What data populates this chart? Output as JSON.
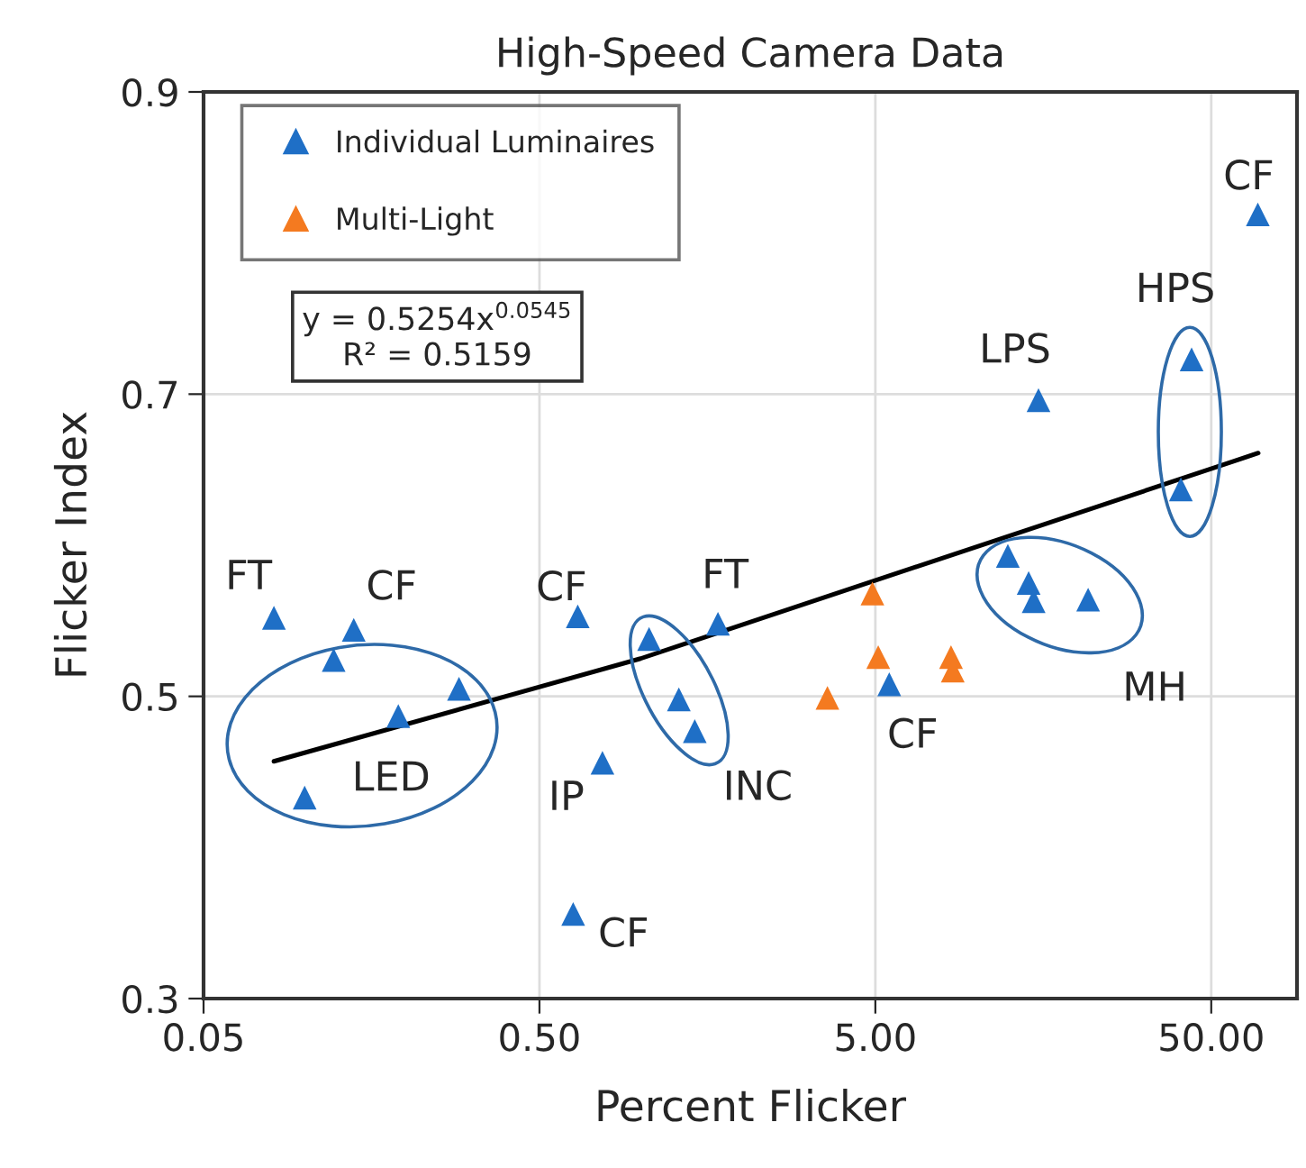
{
  "chart_data": {
    "type": "scatter",
    "title": "High-Speed Camera Data",
    "xlabel": "Percent Flicker",
    "ylabel": "Flicker Index",
    "log": "x",
    "xlim": [
      0.05,
      90
    ],
    "xticks": [
      0.05,
      {
        "value": 0.5,
        "label": "0.50"
      },
      {
        "value": 5,
        "label": "5.00"
      },
      {
        "value": 50,
        "label": "50.00"
      }
    ],
    "ylim": [
      0.3,
      0.9
    ],
    "yticks": [
      0.3,
      0.5,
      0.7,
      0.9
    ],
    "grid": true,
    "legend": "top left",
    "marker": "triangle",
    "series": [
      {
        "name": "Individual Luminaires",
        "color": "#1f6fc6",
        "x": [
          0.081,
          0.14,
          0.122,
          0.288,
          0.19,
          0.1,
          0.65,
          0.77,
          0.63,
          1.06,
          1.3,
          1.45,
          1.7,
          5.5,
          12.4,
          14.3,
          14.8,
          21.5,
          68.8,
          43.7,
          40.6,
          15.3
        ],
        "values": [
          0.552,
          0.544,
          0.524,
          0.505,
          0.487,
          0.433,
          0.553,
          0.456,
          0.356,
          0.538,
          0.498,
          0.477,
          0.548,
          0.508,
          0.593,
          0.575,
          0.563,
          0.564,
          0.819,
          0.723,
          0.637,
          0.696
        ]
      },
      {
        "name": "Multi-Light",
        "color": "#f47a20",
        "x": [
          4.9,
          3.6,
          5.1,
          8.4,
          8.5
        ],
        "values": [
          0.568,
          0.499,
          0.526,
          0.526,
          0.517
        ]
      },
      {
        "type": "line",
        "color": "#000000",
        "marker": "none",
        "x": [
          0.081,
          1,
          69
        ],
        "values": [
          0.457,
          0.525,
          0.661
        ]
      }
    ],
    "annotations": [
      "y = 0.5254x$^{0.0545}$\nR² = 0.5159",
      {
        "text": "FT",
        "x": 0.081,
        "y": 0.552
      },
      {
        "text": "CF",
        "x": 0.14,
        "y": 0.544
      },
      {
        "text": "LED",
        "x": 0.1,
        "y": 0.433
      },
      {
        "text": "CF",
        "x": 0.65,
        "y": 0.553
      },
      {
        "text": "IP",
        "x": 0.77,
        "y": 0.456
      },
      {
        "text": "CF",
        "x": 0.63,
        "y": 0.356
      },
      {
        "text": "FT",
        "x": 1.7,
        "y": 0.548
      },
      {
        "text": "INC",
        "x": 1.45,
        "y": 0.477
      },
      {
        "text": "CF",
        "x": 5.5,
        "y": 0.508
      },
      {
        "text": "MH",
        "x": 21.5,
        "y": 0.564
      },
      {
        "text": "LPS",
        "x": 15.3,
        "y": 0.696
      },
      {
        "text": "HPS",
        "x": 43.7,
        "y": 0.723
      },
      {
        "text": "CF",
        "x": 68.8,
        "y": 0.819
      }
    ]
  }
}
